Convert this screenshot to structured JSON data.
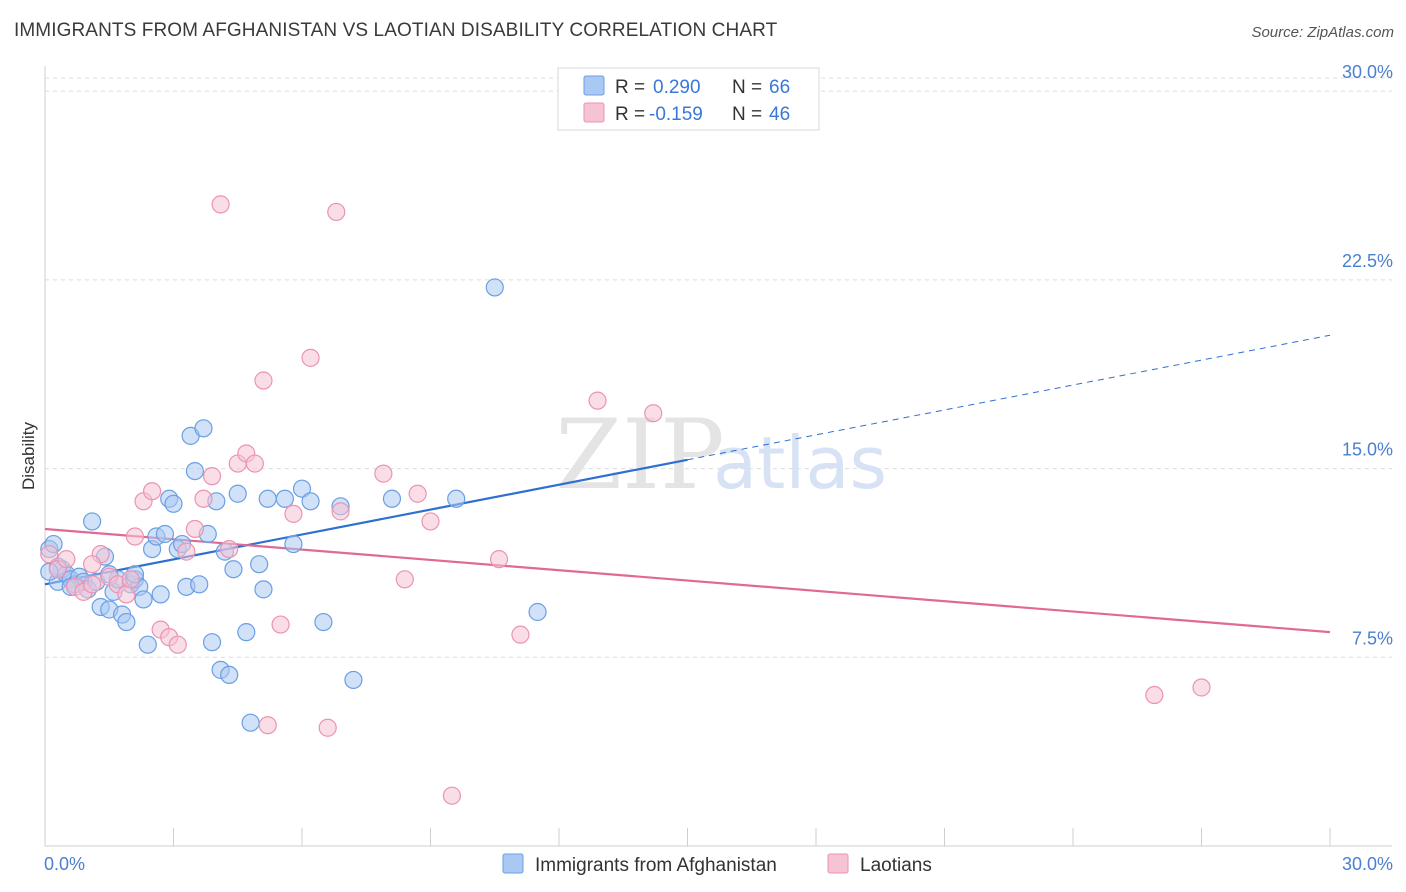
{
  "title": "IMMIGRANTS FROM AFGHANISTAN VS LAOTIAN DISABILITY CORRELATION CHART",
  "source": "Source: ZipAtlas.com",
  "watermark": {
    "zip": "ZIP",
    "atlas": "atlas"
  },
  "colors": {
    "blue_fill": "#a9c8f3",
    "blue_stroke": "#6a9fe3",
    "blue_line": "#2f6fd0",
    "pink_fill": "#f6c3d3",
    "pink_stroke": "#ec93b2",
    "pink_line": "#e06a95",
    "axis_text": "#4a7fd0",
    "grid": "#dcdcdc"
  },
  "chart_data": {
    "type": "scatter",
    "xlabel": "",
    "ylabel": "Disability",
    "xlim": [
      0,
      30
    ],
    "ylim": [
      0,
      31
    ],
    "x_tick_labels": [
      {
        "value": 0,
        "label": "0.0%"
      },
      {
        "value": 30,
        "label": "30.0%"
      }
    ],
    "y_ticks": [
      {
        "value": 7.5,
        "label": "7.5%"
      },
      {
        "value": 15,
        "label": "15.0%"
      },
      {
        "value": 22.5,
        "label": "22.5%"
      },
      {
        "value": 30,
        "label": "30.0%"
      }
    ],
    "grid": "horizontal dashed",
    "legend": {
      "position": "top-center",
      "rows": [
        {
          "r_label": "R =",
          "r_value": "0.290",
          "n_label": "N =",
          "n_value": "66"
        },
        {
          "r_label": "R =",
          "r_value": "-0.159",
          "n_label": "N =",
          "n_value": "46"
        }
      ]
    },
    "series": [
      {
        "name": "Immigrants from Afghanistan",
        "color": "blue",
        "trend": {
          "x0": 0,
          "y0": 10.4,
          "x1": 30,
          "y1": 20.3,
          "solid_until_x": 15
        },
        "points": [
          [
            0.1,
            11.8
          ],
          [
            0.2,
            12.0
          ],
          [
            0.3,
            10.5
          ],
          [
            0.4,
            11.0
          ],
          [
            0.5,
            10.8
          ],
          [
            0.6,
            10.6
          ],
          [
            0.7,
            10.4
          ],
          [
            0.8,
            10.7
          ],
          [
            0.9,
            10.5
          ],
          [
            1.0,
            10.2
          ],
          [
            1.1,
            12.9
          ],
          [
            1.2,
            10.5
          ],
          [
            1.3,
            9.5
          ],
          [
            1.4,
            11.5
          ],
          [
            1.5,
            9.4
          ],
          [
            1.6,
            10.1
          ],
          [
            1.7,
            10.6
          ],
          [
            1.8,
            9.2
          ],
          [
            1.9,
            8.9
          ],
          [
            2.0,
            10.4
          ],
          [
            2.1,
            10.6
          ],
          [
            2.2,
            10.3
          ],
          [
            2.3,
            9.8
          ],
          [
            2.4,
            8.0
          ],
          [
            2.5,
            11.8
          ],
          [
            2.6,
            12.3
          ],
          [
            2.7,
            10.0
          ],
          [
            2.8,
            12.4
          ],
          [
            2.9,
            13.8
          ],
          [
            3.0,
            13.6
          ],
          [
            3.1,
            11.8
          ],
          [
            3.2,
            12.0
          ],
          [
            3.3,
            10.3
          ],
          [
            3.4,
            16.3
          ],
          [
            3.5,
            14.9
          ],
          [
            3.6,
            10.4
          ],
          [
            3.7,
            16.6
          ],
          [
            3.8,
            12.4
          ],
          [
            3.9,
            8.1
          ],
          [
            4.0,
            13.7
          ],
          [
            4.1,
            7.0
          ],
          [
            4.2,
            11.7
          ],
          [
            4.3,
            6.8
          ],
          [
            4.4,
            11.0
          ],
          [
            4.5,
            14.0
          ],
          [
            4.7,
            8.5
          ],
          [
            4.8,
            4.9
          ],
          [
            5.0,
            11.2
          ],
          [
            5.1,
            10.2
          ],
          [
            5.2,
            13.8
          ],
          [
            5.6,
            13.8
          ],
          [
            5.8,
            12.0
          ],
          [
            6.0,
            14.2
          ],
          [
            6.2,
            13.7
          ],
          [
            6.5,
            8.9
          ],
          [
            6.9,
            13.5
          ],
          [
            7.2,
            6.6
          ],
          [
            8.1,
            13.8
          ],
          [
            9.6,
            13.8
          ],
          [
            10.5,
            22.2
          ],
          [
            11.5,
            9.3
          ],
          [
            0.3,
            11.1
          ],
          [
            0.6,
            10.3
          ],
          [
            1.5,
            10.8
          ],
          [
            2.1,
            10.8
          ],
          [
            0.1,
            10.9
          ]
        ]
      },
      {
        "name": "Laotians",
        "color": "pink",
        "trend": {
          "x0": 0,
          "y0": 12.6,
          "x1": 30,
          "y1": 8.5,
          "solid_until_x": 30
        },
        "points": [
          [
            0.1,
            11.6
          ],
          [
            0.3,
            11.0
          ],
          [
            0.5,
            11.4
          ],
          [
            0.7,
            10.3
          ],
          [
            0.9,
            10.1
          ],
          [
            1.1,
            10.4
          ],
          [
            1.3,
            11.6
          ],
          [
            1.5,
            10.7
          ],
          [
            1.7,
            10.4
          ],
          [
            1.9,
            10.0
          ],
          [
            2.1,
            12.3
          ],
          [
            2.3,
            13.7
          ],
          [
            2.5,
            14.1
          ],
          [
            2.7,
            8.6
          ],
          [
            2.9,
            8.3
          ],
          [
            3.1,
            8.0
          ],
          [
            3.3,
            11.7
          ],
          [
            3.5,
            12.6
          ],
          [
            3.7,
            13.8
          ],
          [
            3.9,
            14.7
          ],
          [
            4.1,
            25.5
          ],
          [
            4.3,
            11.8
          ],
          [
            4.5,
            15.2
          ],
          [
            4.7,
            15.6
          ],
          [
            4.9,
            15.2
          ],
          [
            5.1,
            18.5
          ],
          [
            5.2,
            4.8
          ],
          [
            5.5,
            8.8
          ],
          [
            5.8,
            13.2
          ],
          [
            6.2,
            19.4
          ],
          [
            6.6,
            4.7
          ],
          [
            6.8,
            25.2
          ],
          [
            6.9,
            13.3
          ],
          [
            7.9,
            14.8
          ],
          [
            8.4,
            10.6
          ],
          [
            8.7,
            14.0
          ],
          [
            9.0,
            12.9
          ],
          [
            9.5,
            2.0
          ],
          [
            10.6,
            11.4
          ],
          [
            11.1,
            8.4
          ],
          [
            12.9,
            17.7
          ],
          [
            14.2,
            17.2
          ],
          [
            25.9,
            6.0
          ],
          [
            27.0,
            6.3
          ],
          [
            2.0,
            10.6
          ],
          [
            1.1,
            11.2
          ]
        ]
      }
    ]
  }
}
